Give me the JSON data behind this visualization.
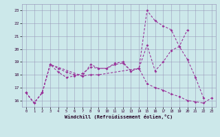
{
  "background_color": "#cce8ea",
  "grid_color": "#9999bb",
  "line_color": "#993399",
  "xlabel": "Windchill (Refroidissement éolien,°C)",
  "ylim": [
    15.5,
    23.5
  ],
  "xlim": [
    -0.5,
    23.5
  ],
  "yticks": [
    16,
    17,
    18,
    19,
    20,
    21,
    22,
    23
  ],
  "xticks": [
    0,
    1,
    2,
    3,
    4,
    5,
    6,
    7,
    8,
    9,
    10,
    11,
    12,
    13,
    14,
    15,
    16,
    17,
    18,
    19,
    20,
    21,
    22,
    23
  ],
  "line1_x": [
    0,
    1,
    2,
    3,
    4,
    5,
    6,
    7,
    8,
    9,
    10,
    11,
    12,
    13,
    14,
    15,
    16,
    17,
    18,
    19,
    20,
    21,
    22
  ],
  "line1_y": [
    16.6,
    15.8,
    16.6,
    18.8,
    18.5,
    18.2,
    18.0,
    17.9,
    18.8,
    18.5,
    18.5,
    18.9,
    19.0,
    18.3,
    18.5,
    20.3,
    18.3,
    19.0,
    19.9,
    20.2,
    19.2,
    17.8,
    16.2
  ],
  "line2_x": [
    0,
    1,
    2,
    3,
    4,
    5,
    6,
    7,
    8,
    9,
    10,
    11,
    12,
    13,
    14,
    15,
    16,
    17,
    18,
    19,
    20
  ],
  "line2_y": [
    16.6,
    15.8,
    16.6,
    18.8,
    18.2,
    17.8,
    17.9,
    18.1,
    18.6,
    18.5,
    18.5,
    18.8,
    18.9,
    18.3,
    18.5,
    23.0,
    22.2,
    21.8,
    21.5,
    20.2,
    21.5
  ],
  "line3_x": [
    0,
    1,
    2,
    3,
    7,
    8,
    9,
    14,
    15,
    16,
    17,
    18,
    19,
    20,
    21,
    22,
    23
  ],
  "line3_y": [
    16.6,
    15.8,
    16.6,
    18.8,
    17.9,
    18.0,
    18.0,
    18.5,
    17.3,
    17.0,
    16.8,
    16.5,
    16.3,
    16.0,
    15.9,
    15.8,
    16.2
  ]
}
